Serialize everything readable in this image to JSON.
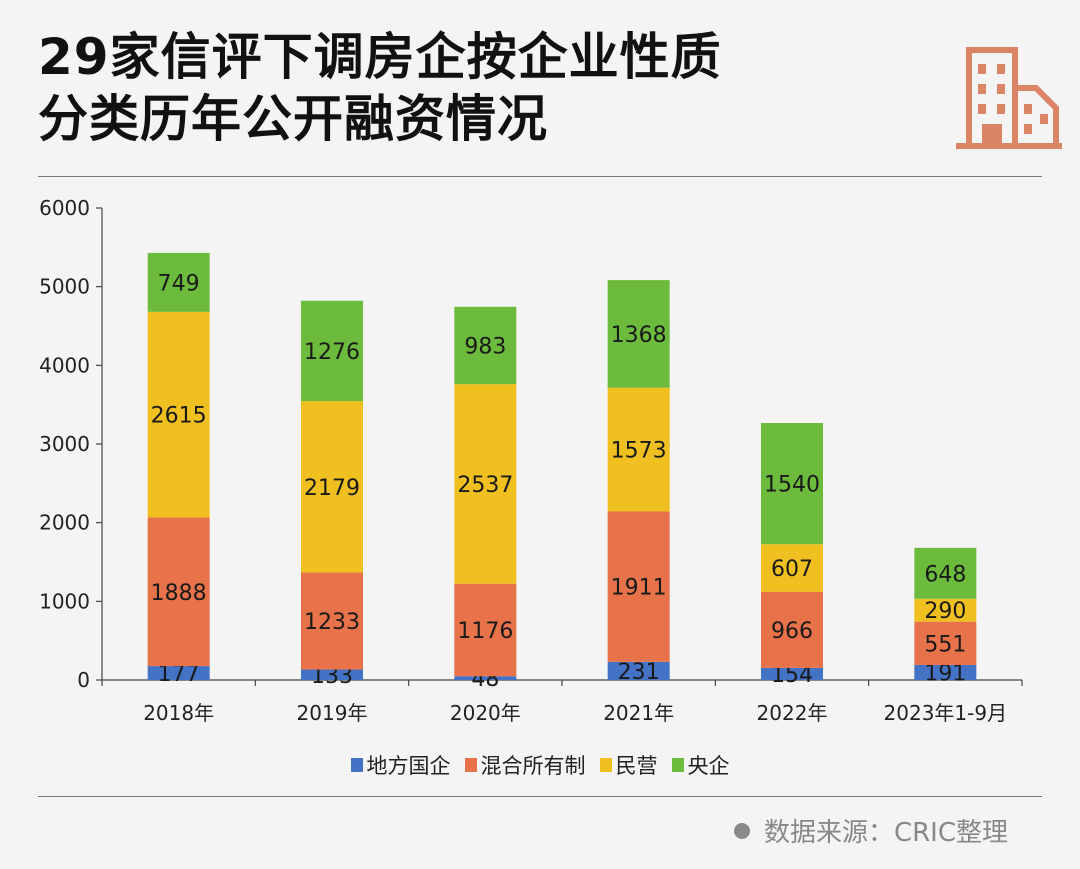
{
  "title": {
    "line1": "29家信评下调房企按企业性质",
    "line2": "分类历年公开融资情况"
  },
  "source": "数据来源：CRIC整理",
  "colors": {
    "地方国企": "#4472c4",
    "混合所有制": "#e8734a",
    "民营": "#f0c020",
    "央企": "#6cbb3c"
  },
  "chart_data": {
    "type": "bar",
    "stacked": true,
    "categories": [
      "2018年",
      "2019年",
      "2020年",
      "2021年",
      "2022年",
      "2023年1-9月"
    ],
    "series": [
      {
        "name": "地方国企",
        "values": [
          177,
          133,
          48,
          231,
          154,
          191
        ]
      },
      {
        "name": "混合所有制",
        "values": [
          1888,
          1233,
          1176,
          1911,
          966,
          551
        ]
      },
      {
        "name": "民营",
        "values": [
          2615,
          2179,
          2537,
          1573,
          607,
          290
        ]
      },
      {
        "name": "央企",
        "values": [
          749,
          1276,
          983,
          1368,
          1540,
          648
        ]
      }
    ],
    "ylim": [
      0,
      6000
    ],
    "yticks": [
      0,
      1000,
      2000,
      3000,
      4000,
      5000,
      6000
    ],
    "legend_position": "bottom",
    "grid": false
  }
}
